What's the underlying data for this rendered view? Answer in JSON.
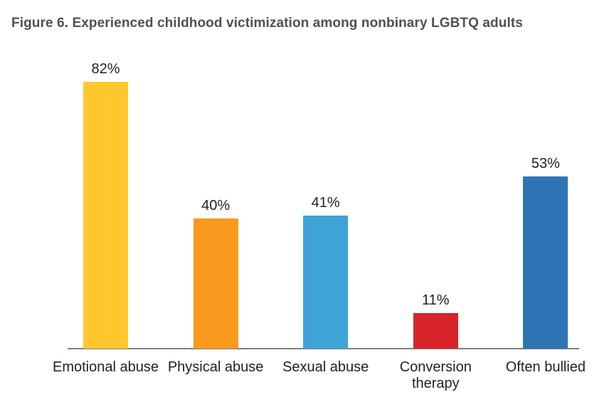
{
  "chart_data": {
    "type": "bar",
    "title": "Figure 6. Experienced childhood victimization among nonbinary LGBTQ adults",
    "categories": [
      "Emotional abuse",
      "Physical abuse",
      "Sexual abuse",
      "Conversion therapy",
      "Often bullied"
    ],
    "values": [
      82,
      40,
      41,
      11,
      53
    ],
    "value_labels": [
      "82%",
      "40%",
      "41%",
      "11%",
      "53%"
    ],
    "unit": "percent",
    "bar_colors": [
      "#FFC72E",
      "#F89A1D",
      "#3FA3D7",
      "#D8232A",
      "#2E74B5"
    ],
    "title_color": "#4D5156",
    "label_color": "#212226",
    "axis_line_color": "#7F7F7F",
    "ylim": [
      0,
      100
    ],
    "y_axis_visible": false,
    "x_axis_visible": true,
    "grid": false,
    "legend": false,
    "data_labels_position": "above-bars"
  }
}
